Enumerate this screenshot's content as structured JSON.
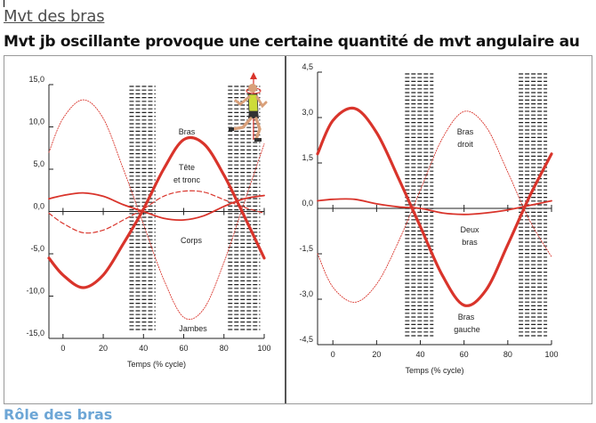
{
  "heading": "Mvt des bras",
  "subheading": "Mvt jb oscillante provoque une certaine quantité de mvt angulaire au",
  "footer_heading": "Rôle des bras",
  "colors": {
    "accent": "#d9342b",
    "axis": "#222222",
    "heading_blue": "#6da6d6"
  },
  "icons": {
    "runner": "runner-figure-icon"
  },
  "chart_data": [
    {
      "type": "line",
      "xlabel": "Temps (% cycle)",
      "ylabel": "",
      "xlim": [
        -7,
        100
      ],
      "ylim": [
        -15,
        15
      ],
      "x_ticks": [
        "0",
        "20",
        "40",
        "60",
        "80",
        "100"
      ],
      "y_ticks": [
        "15,0",
        "10,0",
        "5,0",
        "0,0",
        "-5,0",
        "-10,0",
        "-15,0"
      ],
      "shaded_bands": [
        [
          33,
          46
        ],
        [
          82,
          98
        ]
      ],
      "x": [
        -7,
        0,
        10,
        20,
        30,
        40,
        50,
        60,
        70,
        80,
        90,
        100
      ],
      "series": [
        {
          "name": "Bras",
          "style": "thick",
          "values": [
            -5.5,
            -7.5,
            -9.0,
            -7.5,
            -3.8,
            0.3,
            5.0,
            8.5,
            8.0,
            4.3,
            -0.5,
            -5.5
          ]
        },
        {
          "name": "Tête et tronc",
          "style": "dashed",
          "values": [
            -0.2,
            -1.4,
            -2.5,
            -2.2,
            -1.0,
            0.3,
            1.8,
            2.4,
            2.3,
            1.4,
            0.5,
            -0.2
          ]
        },
        {
          "name": "Corps",
          "style": "medium",
          "values": [
            1.5,
            1.9,
            2.2,
            1.8,
            0.8,
            0.0,
            -0.8,
            -1.0,
            -0.5,
            0.6,
            1.5,
            1.9
          ]
        },
        {
          "name": "Jambes",
          "style": "thin",
          "values": [
            7.0,
            11.0,
            13.2,
            11.0,
            5.0,
            -1.5,
            -8.0,
            -12.5,
            -11.5,
            -6.0,
            1.0,
            8.0
          ]
        }
      ],
      "annotations": [
        "Bras",
        "Tête",
        "et tronc",
        "Corps",
        "Jambes"
      ]
    },
    {
      "type": "line",
      "xlabel": "Temps (% cycle)",
      "ylabel": "",
      "xlim": [
        -7,
        100
      ],
      "ylim": [
        -4.5,
        4.5
      ],
      "x_ticks": [
        "0",
        "20",
        "40",
        "60",
        "80",
        "100"
      ],
      "y_ticks": [
        "4,5",
        "3,0",
        "1,5",
        "0,0",
        "-1,5",
        "-3,0",
        "-4,5"
      ],
      "shaded_bands": [
        [
          33,
          46
        ],
        [
          85,
          98
        ]
      ],
      "x": [
        -7,
        0,
        10,
        20,
        30,
        40,
        50,
        60,
        70,
        80,
        90,
        100
      ],
      "series": [
        {
          "name": "Bras droit",
          "style": "thin",
          "values": [
            -1.5,
            -2.6,
            -3.1,
            -2.5,
            -1.1,
            0.6,
            2.3,
            3.2,
            2.7,
            1.2,
            -0.4,
            -1.6
          ]
        },
        {
          "name": "Bras gauche",
          "style": "thick",
          "values": [
            1.8,
            2.9,
            3.3,
            2.5,
            1.0,
            -0.6,
            -2.2,
            -3.2,
            -2.7,
            -1.2,
            0.4,
            1.8
          ]
        },
        {
          "name": "Deux bras",
          "style": "medium",
          "values": [
            0.25,
            0.3,
            0.3,
            0.15,
            0.05,
            0.0,
            -0.15,
            -0.2,
            -0.15,
            -0.05,
            0.1,
            0.25
          ]
        }
      ],
      "annotations": [
        "Bras",
        "droit",
        "Deux",
        "bras",
        "Bras",
        "gauche"
      ]
    }
  ]
}
